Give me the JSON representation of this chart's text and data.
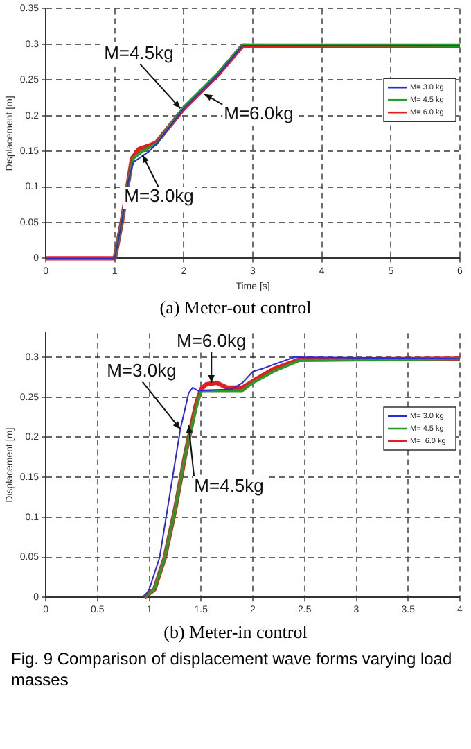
{
  "chart_data": [
    {
      "type": "line",
      "xlabel": "Time [s]",
      "ylabel": "Displacement [m]",
      "xlim": [
        0,
        6
      ],
      "xticks": [
        0,
        1,
        2,
        3,
        4,
        5,
        6
      ],
      "ylim": [
        0,
        0.35
      ],
      "yticks": [
        0,
        0.05,
        0.1,
        0.15,
        0.2,
        0.25,
        0.3,
        0.35
      ],
      "grid": true,
      "line_style": "solid",
      "marker": "none",
      "legend": "top right",
      "series": [
        {
          "name": "M= 3.0 kg",
          "color": "#2b2bdc",
          "x": [
            0,
            1,
            1.1,
            1.2,
            1.27,
            1.35,
            1.5,
            1.6,
            2,
            2.5,
            2.85,
            6
          ],
          "values": [
            0,
            0,
            0.05,
            0.11,
            0.135,
            0.14,
            0.15,
            0.16,
            0.21,
            0.258,
            0.298,
            0.298
          ]
        },
        {
          "name": "M= 4.5 kg",
          "color": "#2a9a2a",
          "x": [
            0,
            1,
            1.1,
            1.2,
            1.27,
            1.4,
            1.5,
            1.6,
            2,
            2.5,
            2.85,
            6
          ],
          "values": [
            0,
            0,
            0.05,
            0.11,
            0.14,
            0.15,
            0.155,
            0.16,
            0.212,
            0.26,
            0.299,
            0.298
          ]
        },
        {
          "name": "M= 6.0 kg",
          "color": "#e02020",
          "x": [
            0,
            1,
            1.1,
            1.2,
            1.25,
            1.35,
            1.5,
            1.6,
            2,
            2.5,
            2.85,
            6
          ],
          "values": [
            0,
            0,
            0.05,
            0.11,
            0.14,
            0.153,
            0.158,
            0.162,
            0.21,
            0.258,
            0.298,
            0.298
          ]
        }
      ],
      "annotations": [
        {
          "text": "M=4.5kg",
          "x": 1.95,
          "y": 0.21
        },
        {
          "text": "M=6.0kg",
          "x": 2.3,
          "y": 0.23
        },
        {
          "text": "M=3.0kg",
          "x": 1.4,
          "y": 0.145
        },
        "(a)  Meter-out  control"
      ]
    },
    {
      "type": "line",
      "ylabel": "Displacement [m]",
      "xlim": [
        0,
        4
      ],
      "xticks": [
        0,
        0.5,
        1,
        1.5,
        2,
        2.5,
        3,
        3.5,
        4
      ],
      "ylim": [
        0,
        0.33
      ],
      "yticks": [
        0,
        0.05,
        0.1,
        0.15,
        0.2,
        0.25,
        0.3
      ],
      "grid": true,
      "line_style": "solid",
      "marker": "none",
      "legend": "top right",
      "series": [
        {
          "name": "M= 3.0 kg",
          "color": "#2b2bdc",
          "x": [
            0.95,
            1,
            1.1,
            1.2,
            1.3,
            1.38,
            1.42,
            1.47,
            1.8,
            1.9,
            2,
            2.1,
            2.4,
            4
          ],
          "values": [
            0,
            0.01,
            0.05,
            0.13,
            0.21,
            0.255,
            0.262,
            0.258,
            0.26,
            0.268,
            0.282,
            0.286,
            0.3,
            0.298
          ]
        },
        {
          "name": "M= 4.5 kg",
          "color": "#2a9a2a",
          "x": [
            0.95,
            1.05,
            1.15,
            1.25,
            1.35,
            1.45,
            1.5,
            1.7,
            1.9,
            2,
            2.2,
            2.45,
            4
          ],
          "values": [
            0,
            0.01,
            0.05,
            0.11,
            0.18,
            0.235,
            0.258,
            0.258,
            0.258,
            0.268,
            0.282,
            0.296,
            0.298
          ]
        },
        {
          "name": "M=  6.0 kg",
          "color": "#e02020",
          "x": [
            0.95,
            1.05,
            1.15,
            1.25,
            1.35,
            1.45,
            1.5,
            1.55,
            1.65,
            1.75,
            1.9,
            2,
            2.2,
            2.45,
            4
          ],
          "values": [
            0,
            0.01,
            0.05,
            0.11,
            0.18,
            0.24,
            0.26,
            0.266,
            0.268,
            0.262,
            0.262,
            0.27,
            0.285,
            0.297,
            0.298
          ]
        }
      ],
      "annotations": [
        {
          "text": "M=6.0kg",
          "x": 1.6,
          "y": 0.268
        },
        {
          "text": "M=3.0kg",
          "x": 1.3,
          "y": 0.21
        },
        {
          "text": "M=4.5kg",
          "x": 1.38,
          "y": 0.215
        },
        "(b)  Meter-in  control",
        "Fig. 9  Comparison  of  displacement  wave  forms  varying  load  masses"
      ]
    }
  ]
}
